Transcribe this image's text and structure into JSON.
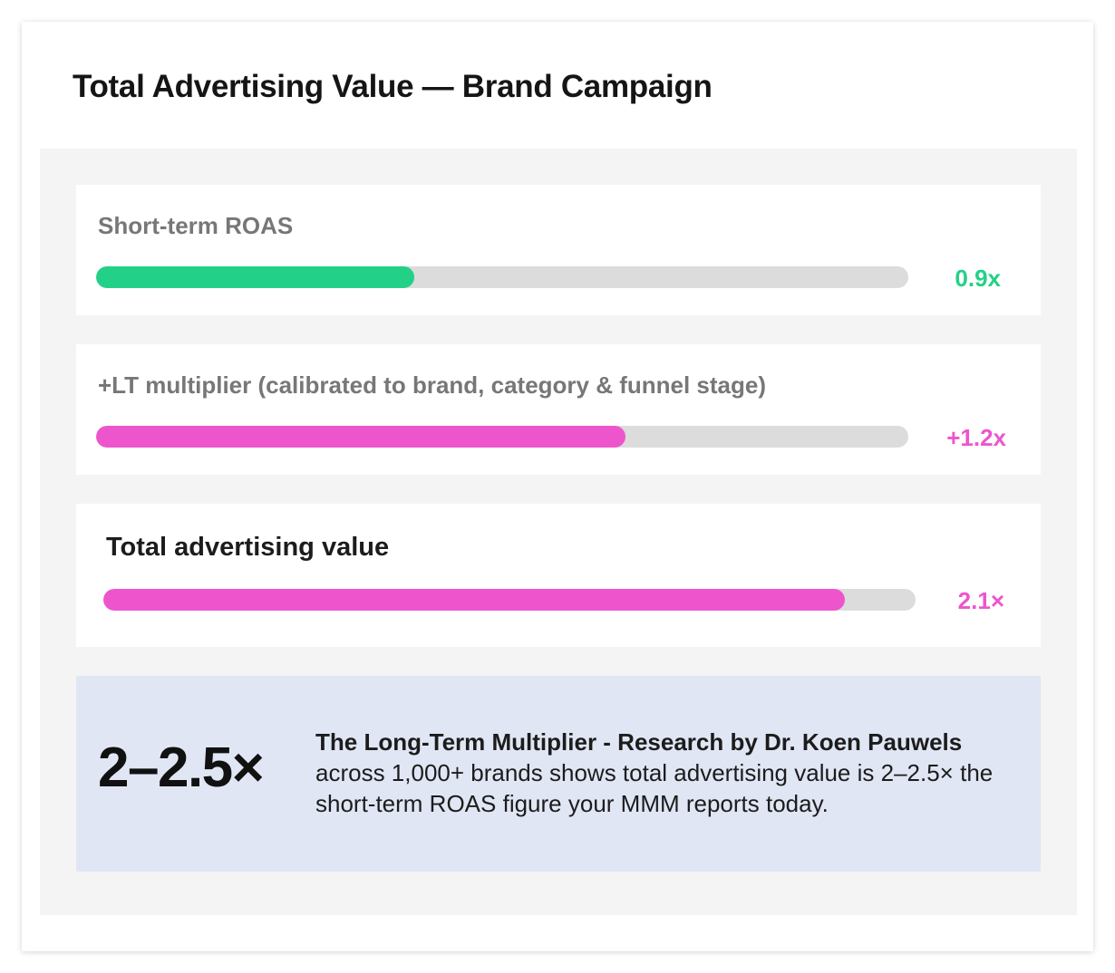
{
  "title": "Total Advertising Value — Brand Campaign",
  "colors": {
    "green": "#22d187",
    "pink": "#ee55cc",
    "track": "#dcdcdc",
    "callout_bg": "#e0e6f4"
  },
  "chart_data": {
    "type": "bar",
    "orientation": "horizontal",
    "scale_max": 2.3,
    "bars": [
      {
        "label": "Short-term ROAS",
        "value": 0.9,
        "value_label": "0.9x",
        "color": "#22d187"
      },
      {
        "label": "+LT multiplier (calibrated to brand, category & funnel stage)",
        "value": 1.2,
        "offset": 0.3,
        "value_label": "+1.2x",
        "color": "#ee55cc"
      },
      {
        "label": "Total advertising value",
        "value": 2.1,
        "value_label": "2.1×",
        "color": "#ee55cc"
      }
    ]
  },
  "callout": {
    "big": "2–2.5×",
    "headline": "The Long-Term Multiplier - Research by Dr. Koen Pauwels",
    "body": "across 1,000+ brands shows total advertising value is 2–2.5× the short-term ROAS figure your MMM reports today."
  }
}
